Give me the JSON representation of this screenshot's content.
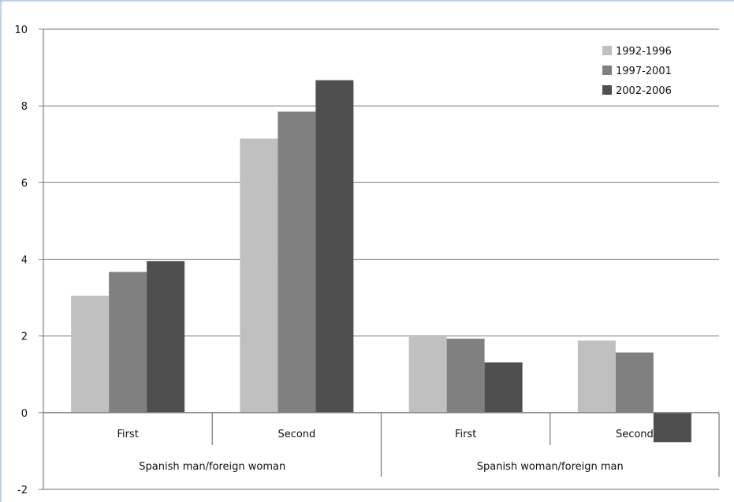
{
  "chart_data": {
    "type": "bar",
    "title": "",
    "xlabel": "",
    "ylabel": "",
    "ylim": [
      -2,
      10
    ],
    "yticks": [
      -2,
      0,
      2,
      4,
      6,
      8,
      10
    ],
    "grid": "horizontal",
    "legend_position": "top-right",
    "categories": [
      "First",
      "Second",
      "First",
      "Second"
    ],
    "groups": [
      {
        "label": "Spanish man/foreign woman",
        "categories": [
          "First",
          "Second"
        ]
      },
      {
        "label": "Spanish woman/foreign man",
        "categories": [
          "First",
          "Second"
        ]
      }
    ],
    "series": [
      {
        "name": "1992-1996",
        "color": "#c0c0c0",
        "values": [
          3.05,
          7.15,
          1.98,
          1.88
        ]
      },
      {
        "name": "1997-2001",
        "color": "#808080",
        "values": [
          3.67,
          7.85,
          1.93,
          1.57
        ]
      },
      {
        "name": "2002-2006",
        "color": "#4f4f4f",
        "values": [
          3.95,
          8.67,
          1.31,
          -0.77
        ]
      }
    ]
  },
  "colors": {
    "gridline": "#8c8c8c",
    "axis": "#808080",
    "frame": "#a9c4dd"
  }
}
